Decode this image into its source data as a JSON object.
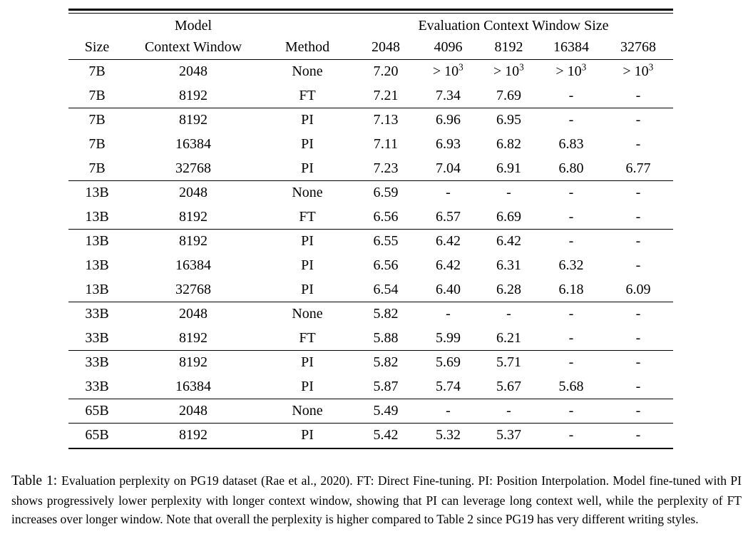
{
  "table": {
    "header": {
      "model_group_label": "Model",
      "eval_group_label": "Evaluation Context Window Size",
      "columns": [
        "Size",
        "Context Window",
        "Method",
        "2048",
        "4096",
        "8192",
        "16384",
        "32768"
      ]
    },
    "groups": [
      {
        "rows": [
          {
            "size": "7B",
            "context_window": "2048",
            "method": "None",
            "values": [
              "7.20",
              "> 10^3",
              "> 10^3",
              "> 10^3",
              "> 10^3"
            ]
          },
          {
            "size": "7B",
            "context_window": "8192",
            "method": "FT",
            "values": [
              "7.21",
              "7.34",
              "7.69",
              "-",
              "-"
            ]
          }
        ]
      },
      {
        "rows": [
          {
            "size": "7B",
            "context_window": "8192",
            "method": "PI",
            "values": [
              "7.13",
              "6.96",
              "6.95",
              "-",
              "-"
            ]
          },
          {
            "size": "7B",
            "context_window": "16384",
            "method": "PI",
            "values": [
              "7.11",
              "6.93",
              "6.82",
              "6.83",
              "-"
            ]
          },
          {
            "size": "7B",
            "context_window": "32768",
            "method": "PI",
            "values": [
              "7.23",
              "7.04",
              "6.91",
              "6.80",
              "6.77"
            ]
          }
        ]
      },
      {
        "rows": [
          {
            "size": "13B",
            "context_window": "2048",
            "method": "None",
            "values": [
              "6.59",
              "-",
              "-",
              "-",
              "-"
            ]
          },
          {
            "size": "13B",
            "context_window": "8192",
            "method": "FT",
            "values": [
              "6.56",
              "6.57",
              "6.69",
              "-",
              "-"
            ]
          }
        ]
      },
      {
        "rows": [
          {
            "size": "13B",
            "context_window": "8192",
            "method": "PI",
            "values": [
              "6.55",
              "6.42",
              "6.42",
              "-",
              "-"
            ]
          },
          {
            "size": "13B",
            "context_window": "16384",
            "method": "PI",
            "values": [
              "6.56",
              "6.42",
              "6.31",
              "6.32",
              "-"
            ]
          },
          {
            "size": "13B",
            "context_window": "32768",
            "method": "PI",
            "values": [
              "6.54",
              "6.40",
              "6.28",
              "6.18",
              "6.09"
            ]
          }
        ]
      },
      {
        "rows": [
          {
            "size": "33B",
            "context_window": "2048",
            "method": "None",
            "values": [
              "5.82",
              "-",
              "-",
              "-",
              "-"
            ]
          },
          {
            "size": "33B",
            "context_window": "8192",
            "method": "FT",
            "values": [
              "5.88",
              "5.99",
              "6.21",
              "-",
              "-"
            ]
          }
        ]
      },
      {
        "rows": [
          {
            "size": "33B",
            "context_window": "8192",
            "method": "PI",
            "values": [
              "5.82",
              "5.69",
              "5.71",
              "-",
              "-"
            ]
          },
          {
            "size": "33B",
            "context_window": "16384",
            "method": "PI",
            "values": [
              "5.87",
              "5.74",
              "5.67",
              "5.68",
              "-"
            ]
          }
        ]
      },
      {
        "rows": [
          {
            "size": "65B",
            "context_window": "2048",
            "method": "None",
            "values": [
              "5.49",
              "-",
              "-",
              "-",
              "-"
            ]
          }
        ]
      },
      {
        "rows": [
          {
            "size": "65B",
            "context_window": "8192",
            "method": "PI",
            "values": [
              "5.42",
              "5.32",
              "5.37",
              "-",
              "-"
            ]
          }
        ]
      }
    ]
  },
  "caption": {
    "label": "Table 1:",
    "text": "Evaluation perplexity on PG19 dataset (Rae et al., 2020). FT: Direct Fine-tuning. PI: Position Interpolation. Model fine-tuned with PI shows progressively lower perplexity with longer context window, showing that PI can leverage long context well, while the perplexity of FT increases over longer window. Note that overall the perplexity is higher compared to Table 2 since PG19 has very different writing styles."
  }
}
